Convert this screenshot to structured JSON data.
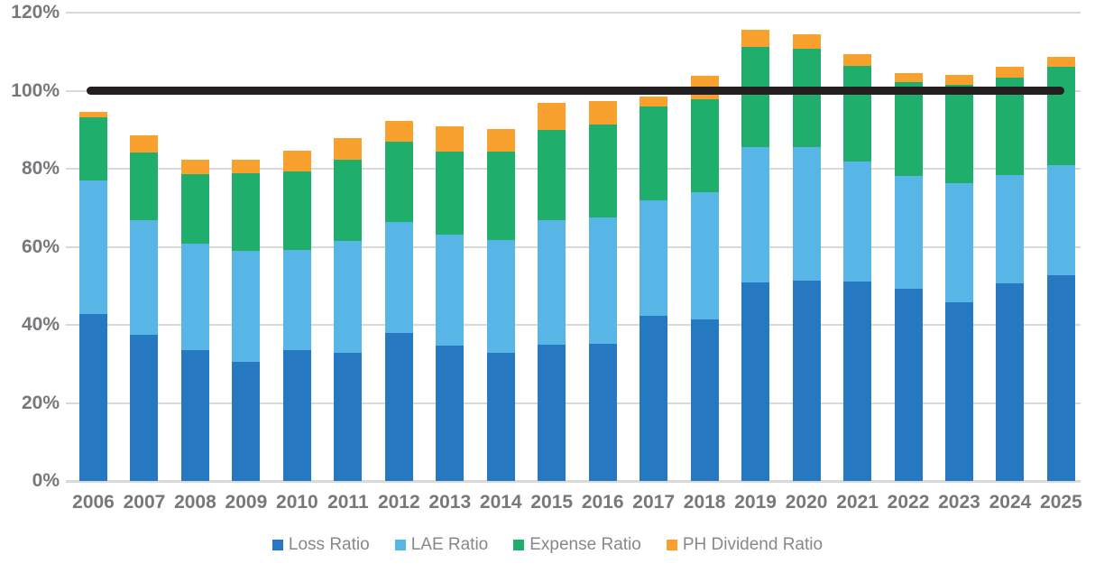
{
  "chart_data": {
    "type": "bar",
    "stacked": true,
    "title": "",
    "categories": [
      "2006",
      "2007",
      "2008",
      "2009",
      "2010",
      "2011",
      "2012",
      "2013",
      "2014",
      "2015",
      "2016",
      "2017",
      "2018",
      "2019",
      "2020",
      "2021",
      "2022",
      "2023",
      "2024",
      "2025"
    ],
    "series": [
      {
        "name": "Loss Ratio",
        "color": "#2679C0",
        "values": [
          42.7,
          37.5,
          33.5,
          30.6,
          33.6,
          32.9,
          37.9,
          34.6,
          32.8,
          35.0,
          35.2,
          42.3,
          41.4,
          50.9,
          51.3,
          51.0,
          49.2,
          45.8,
          50.6,
          52.7
        ]
      },
      {
        "name": "LAE Ratio",
        "color": "#58B6E7",
        "values": [
          34.3,
          29.3,
          27.3,
          28.4,
          25.6,
          28.5,
          28.4,
          28.5,
          29.0,
          31.8,
          32.4,
          29.7,
          32.5,
          34.6,
          34.3,
          30.8,
          29.0,
          30.6,
          27.7,
          28.2
        ]
      },
      {
        "name": "Expense Ratio",
        "color": "#1FAE6B",
        "values": [
          16.2,
          17.3,
          17.9,
          19.8,
          20.1,
          20.8,
          20.6,
          21.3,
          22.5,
          23.1,
          23.7,
          23.9,
          24.0,
          25.6,
          25.1,
          24.5,
          24.0,
          25.1,
          25.1,
          25.2
        ]
      },
      {
        "name": "PH Dividend Ratio",
        "color": "#F9A12F",
        "values": [
          1.4,
          4.5,
          3.6,
          3.5,
          5.4,
          5.6,
          5.4,
          6.4,
          5.8,
          6.9,
          6.0,
          2.6,
          5.8,
          4.4,
          3.7,
          3.1,
          2.3,
          2.5,
          2.7,
          2.5
        ]
      }
    ],
    "reference_line": {
      "value": 100,
      "color": "#231F20"
    },
    "y_axis": {
      "ticks": [
        0,
        20,
        40,
        60,
        80,
        100,
        120
      ],
      "tick_format": "percent",
      "ylim": [
        0,
        120
      ]
    },
    "grid": "horizontal",
    "grid_color": "#D9D9D9",
    "axis_label_color": "#77787B",
    "legend_position": "bottom",
    "legend_entries": [
      "Loss Ratio",
      "LAE Ratio",
      "Expense Ratio",
      "PH Dividend Ratio"
    ]
  }
}
